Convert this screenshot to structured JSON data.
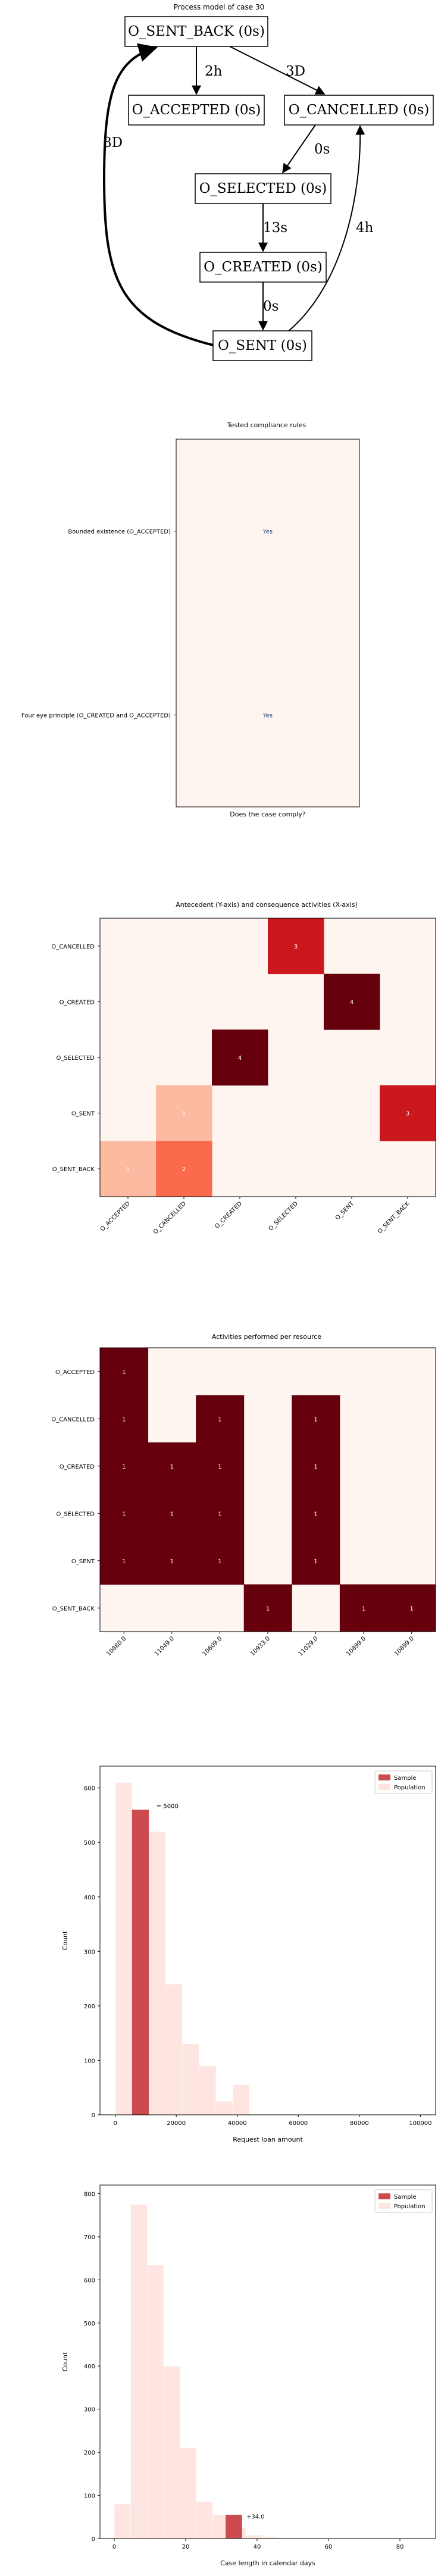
{
  "process_model": {
    "title": "Process model of case 30",
    "nodes": [
      {
        "id": "sent_back",
        "label": "O_SENT_BACK (0s)"
      },
      {
        "id": "accepted",
        "label": "O_ACCEPTED (0s)"
      },
      {
        "id": "cancelled",
        "label": "O_CANCELLED (0s)"
      },
      {
        "id": "selected",
        "label": "O_SELECTED (0s)"
      },
      {
        "id": "created",
        "label": "O_CREATED (0s)"
      },
      {
        "id": "sent",
        "label": "O_SENT (0s)"
      }
    ],
    "edges": [
      {
        "from": "sent_back",
        "to": "accepted",
        "label": "2h"
      },
      {
        "from": "sent_back",
        "to": "cancelled",
        "label": "3D"
      },
      {
        "from": "cancelled",
        "to": "selected",
        "label": "0s"
      },
      {
        "from": "selected",
        "to": "created",
        "label": "13s"
      },
      {
        "from": "created",
        "to": "sent",
        "label": "0s"
      },
      {
        "from": "sent",
        "to": "sent_back",
        "label": "8D"
      },
      {
        "from": "sent",
        "to": "cancelled",
        "label": "4h"
      }
    ]
  },
  "chart_data": [
    {
      "type": "table",
      "title": "Tested compliance rules",
      "xlabel": "Does the case comply?",
      "rules": [
        "Bounded existence (O_ACCEPTED)",
        "Four eye principle (O_CREATED and O_ACCEPTED)"
      ],
      "values": [
        "Yes",
        "Yes"
      ]
    },
    {
      "type": "heatmap",
      "title": "Antecedent (Y-axis) and consequence activities (X-axis)",
      "x_categories": [
        "O_ACCEPTED",
        "O_CANCELLED",
        "O_CREATED",
        "O_SELECTED",
        "O_SENT",
        "O_SENT_BACK"
      ],
      "y_categories": [
        "O_CANCELLED",
        "O_CREATED",
        "O_SELECTED",
        "O_SENT",
        "O_SENT_BACK"
      ],
      "values": [
        [
          0,
          0,
          0,
          3,
          0,
          0
        ],
        [
          0,
          0,
          0,
          0,
          4,
          0
        ],
        [
          0,
          0,
          4,
          0,
          0,
          0
        ],
        [
          0,
          1,
          0,
          0,
          0,
          3
        ],
        [
          1,
          2,
          0,
          0,
          0,
          0
        ]
      ],
      "colors": [
        [
          0,
          0,
          0,
          "#cb181d",
          0,
          0
        ],
        [
          0,
          0,
          0,
          0,
          "#67000d",
          0
        ],
        [
          0,
          0,
          "#67000d",
          0,
          0,
          0
        ],
        [
          0,
          "#fcbba1",
          0,
          0,
          0,
          "#cb181d"
        ],
        [
          "#fcbba1",
          "#fb6a4a",
          0,
          0,
          0,
          0
        ]
      ]
    },
    {
      "type": "heatmap",
      "title": "Activities performed per resource",
      "x_categories": [
        "10880.0",
        "11049.0",
        "10609.0",
        "10933.0",
        "11029.0",
        "10899.0",
        "10899.0"
      ],
      "y_categories": [
        "O_ACCEPTED",
        "O_CANCELLED",
        "O_CREATED",
        "O_SELECTED",
        "O_SENT",
        "O_SENT_BACK"
      ],
      "values": [
        [
          1,
          0,
          0,
          0,
          0,
          0,
          0
        ],
        [
          1,
          0,
          1,
          0,
          1,
          0,
          0
        ],
        [
          1,
          1,
          1,
          0,
          1,
          0,
          0
        ],
        [
          1,
          1,
          1,
          0,
          1,
          0,
          0
        ],
        [
          1,
          1,
          1,
          0,
          1,
          0,
          0
        ],
        [
          0,
          0,
          0,
          1,
          0,
          1,
          1
        ]
      ]
    },
    {
      "type": "bar",
      "xlabel": "Request loan amount",
      "ylabel": "Count",
      "xlim": [
        -5000,
        105000
      ],
      "ylim": [
        0,
        640
      ],
      "x_ticks": [
        0,
        20000,
        40000,
        60000,
        80000,
        100000
      ],
      "y_ticks": [
        0,
        100,
        200,
        300,
        400,
        500,
        600
      ],
      "legend": [
        "Sample",
        "Population"
      ],
      "legend_position": "top-right",
      "annotation": "= 5000",
      "bin_width": 5500,
      "population_bins": [
        {
          "x": 0,
          "value": 610
        },
        {
          "x": 5500,
          "value": 560
        },
        {
          "x": 11000,
          "value": 520
        },
        {
          "x": 16500,
          "value": 240
        },
        {
          "x": 22000,
          "value": 130
        },
        {
          "x": 27500,
          "value": 90
        },
        {
          "x": 33000,
          "value": 25
        },
        {
          "x": 38500,
          "value": 55
        }
      ],
      "sample_bin": {
        "x": 5500,
        "value": 560
      }
    },
    {
      "type": "bar",
      "xlabel": "Case length in calendar days",
      "ylabel": "Count",
      "xlim": [
        -4,
        90
      ],
      "ylim": [
        0,
        820
      ],
      "x_ticks": [
        0,
        20,
        40,
        60,
        80
      ],
      "y_ticks": [
        0,
        100,
        200,
        300,
        400,
        500,
        600,
        700,
        800
      ],
      "legend": [
        "Sample",
        "Population"
      ],
      "legend_position": "top-right",
      "annotation": "+34.0",
      "bin_width": 4.6,
      "population_bins": [
        {
          "x": 0,
          "value": 80
        },
        {
          "x": 4.6,
          "value": 775
        },
        {
          "x": 9.2,
          "value": 635
        },
        {
          "x": 13.8,
          "value": 400
        },
        {
          "x": 18.4,
          "value": 210
        },
        {
          "x": 23,
          "value": 85
        },
        {
          "x": 27.6,
          "value": 55
        },
        {
          "x": 32.2,
          "value": 25
        },
        {
          "x": 36.8,
          "value": 8
        },
        {
          "x": 41.4,
          "value": 4
        }
      ],
      "sample_bin": {
        "x": 31.2,
        "value": 55
      }
    }
  ],
  "colors": {
    "cell_background": "#fff5f0",
    "cell_max": "#67000d",
    "sample_bar": "#cb4b4f",
    "population_bar": "#fee5e2",
    "cell_text_light": "#ffffff"
  }
}
